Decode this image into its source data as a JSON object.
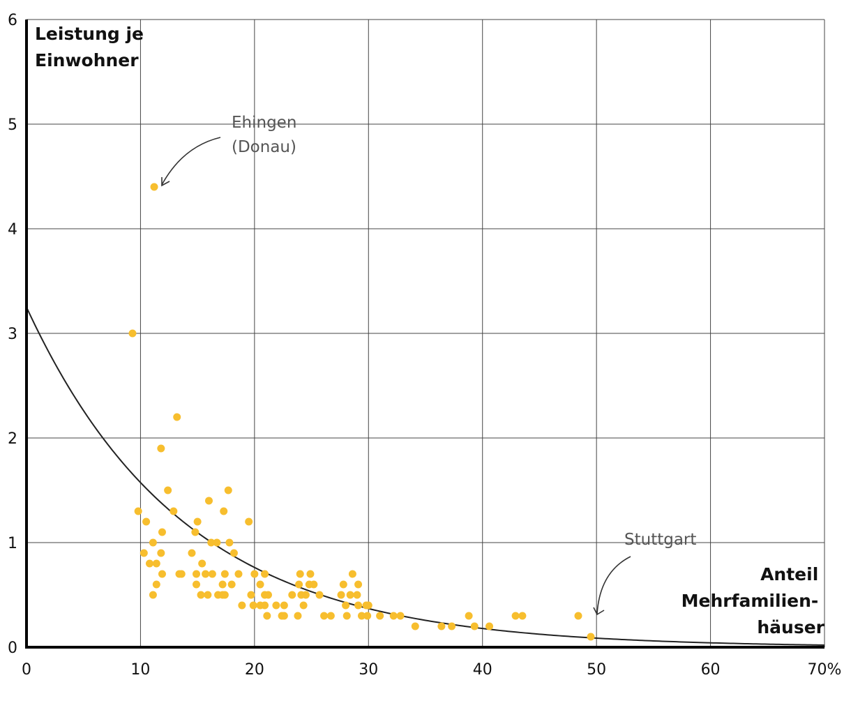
{
  "chart_data": {
    "type": "scatter",
    "title": "",
    "ylabel_lines": [
      "Leistung je",
      "Einwohner"
    ],
    "xlabel_lines": [
      "Anteil",
      "Mehrfamilien-",
      "häuser"
    ],
    "xlim": [
      0,
      70
    ],
    "ylim": [
      0,
      6
    ],
    "x_ticks": [
      {
        "value": 0,
        "label": "0"
      },
      {
        "value": 10,
        "label": "10"
      },
      {
        "value": 20,
        "label": "20"
      },
      {
        "value": 30,
        "label": "30"
      },
      {
        "value": 40,
        "label": "40"
      },
      {
        "value": 50,
        "label": "50"
      },
      {
        "value": 60,
        "label": "60"
      },
      {
        "value": 70,
        "label": "70%"
      }
    ],
    "y_ticks": [
      {
        "value": 0,
        "label": "0"
      },
      {
        "value": 1,
        "label": "1"
      },
      {
        "value": 2,
        "label": "2"
      },
      {
        "value": 3,
        "label": "3"
      },
      {
        "value": 4,
        "label": "4"
      },
      {
        "value": 5,
        "label": "5"
      },
      {
        "value": 6,
        "label": "6"
      }
    ],
    "grid": true,
    "point_color": "#F7BE2E",
    "curve_color": "#222222",
    "trend_curve": {
      "type": "exponential",
      "a": 3.25,
      "b": -0.0725
    },
    "annotations": [
      {
        "lines": [
          "Ehingen",
          "(Donau)"
        ],
        "x": 11.2,
        "y": 4.4
      },
      {
        "lines": [
          "Stuttgart"
        ],
        "x": 49.5,
        "y": 0.1
      }
    ],
    "points": [
      [
        11.2,
        4.4
      ],
      [
        9.3,
        3.0
      ],
      [
        13.2,
        2.2
      ],
      [
        11.8,
        1.9
      ],
      [
        12.4,
        1.5
      ],
      [
        17.7,
        1.5
      ],
      [
        9.8,
        1.3
      ],
      [
        12.9,
        1.3
      ],
      [
        17.3,
        1.3
      ],
      [
        10.5,
        1.2
      ],
      [
        15.0,
        1.2
      ],
      [
        19.5,
        1.2
      ],
      [
        16.0,
        1.4
      ],
      [
        11.9,
        1.1
      ],
      [
        14.8,
        1.1
      ],
      [
        11.1,
        1.0
      ],
      [
        16.2,
        1.0
      ],
      [
        16.7,
        1.0
      ],
      [
        17.8,
        1.0
      ],
      [
        10.3,
        0.9
      ],
      [
        11.8,
        0.9
      ],
      [
        14.5,
        0.9
      ],
      [
        18.2,
        0.9
      ],
      [
        10.8,
        0.8
      ],
      [
        11.4,
        0.8
      ],
      [
        15.4,
        0.8
      ],
      [
        11.9,
        0.7
      ],
      [
        13.4,
        0.7
      ],
      [
        13.6,
        0.7
      ],
      [
        14.9,
        0.7
      ],
      [
        15.7,
        0.7
      ],
      [
        16.3,
        0.7
      ],
      [
        17.4,
        0.7
      ],
      [
        18.6,
        0.7
      ],
      [
        20.0,
        0.7
      ],
      [
        20.9,
        0.7
      ],
      [
        24.0,
        0.7
      ],
      [
        24.9,
        0.7
      ],
      [
        28.6,
        0.7
      ],
      [
        11.4,
        0.6
      ],
      [
        14.9,
        0.6
      ],
      [
        17.2,
        0.6
      ],
      [
        18.0,
        0.6
      ],
      [
        20.5,
        0.6
      ],
      [
        23.9,
        0.6
      ],
      [
        24.8,
        0.6
      ],
      [
        25.2,
        0.6
      ],
      [
        27.8,
        0.6
      ],
      [
        29.1,
        0.6
      ],
      [
        11.1,
        0.5
      ],
      [
        15.3,
        0.5
      ],
      [
        15.9,
        0.5
      ],
      [
        16.8,
        0.5
      ],
      [
        17.2,
        0.5
      ],
      [
        17.4,
        0.5
      ],
      [
        19.7,
        0.5
      ],
      [
        20.9,
        0.5
      ],
      [
        21.2,
        0.5
      ],
      [
        23.3,
        0.5
      ],
      [
        24.1,
        0.5
      ],
      [
        24.5,
        0.5
      ],
      [
        25.7,
        0.5
      ],
      [
        27.6,
        0.5
      ],
      [
        28.4,
        0.5
      ],
      [
        29.0,
        0.5
      ],
      [
        18.9,
        0.4
      ],
      [
        19.9,
        0.4
      ],
      [
        20.5,
        0.4
      ],
      [
        20.9,
        0.4
      ],
      [
        21.9,
        0.4
      ],
      [
        22.6,
        0.4
      ],
      [
        24.3,
        0.4
      ],
      [
        28.0,
        0.4
      ],
      [
        29.8,
        0.4
      ],
      [
        30.0,
        0.4
      ],
      [
        29.1,
        0.4
      ],
      [
        21.1,
        0.3
      ],
      [
        22.4,
        0.3
      ],
      [
        22.6,
        0.3
      ],
      [
        23.8,
        0.3
      ],
      [
        26.1,
        0.3
      ],
      [
        26.7,
        0.3
      ],
      [
        28.1,
        0.3
      ],
      [
        29.4,
        0.3
      ],
      [
        29.9,
        0.3
      ],
      [
        31.0,
        0.3
      ],
      [
        32.2,
        0.3
      ],
      [
        32.8,
        0.3
      ],
      [
        38.8,
        0.3
      ],
      [
        42.9,
        0.3
      ],
      [
        43.5,
        0.3
      ],
      [
        48.4,
        0.3
      ],
      [
        34.1,
        0.2
      ],
      [
        36.4,
        0.2
      ],
      [
        37.3,
        0.2
      ],
      [
        39.3,
        0.2
      ],
      [
        40.6,
        0.2
      ],
      [
        49.5,
        0.1
      ]
    ]
  }
}
